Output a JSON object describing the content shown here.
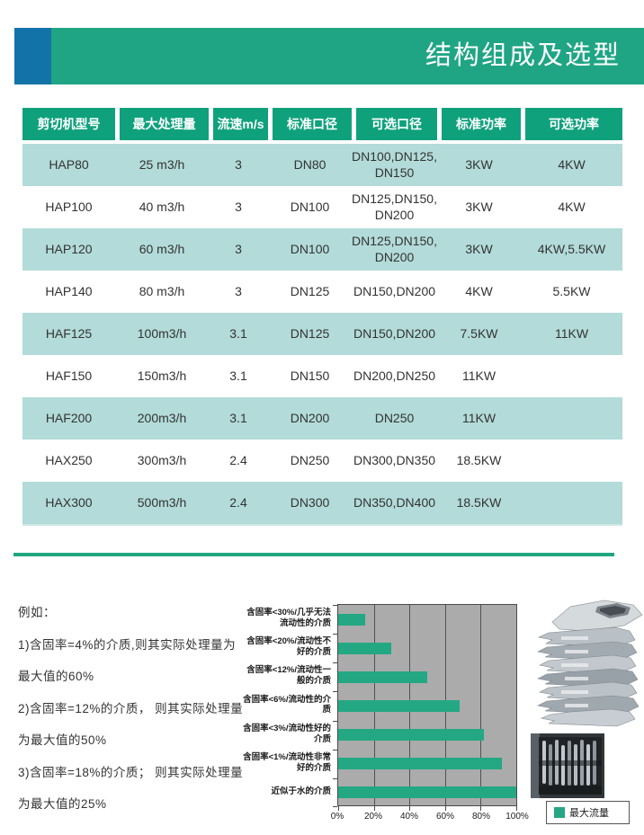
{
  "header": {
    "title": "结构组成及选型"
  },
  "colors": {
    "band": "#1FA584",
    "accent_blue": "#1273A9",
    "table_header": "#0FA17C",
    "row_stripe": "#B2DBD9",
    "bar_green": "#23A883",
    "plot_bg": "#ABABAB",
    "divider": "#1EA67E"
  },
  "table": {
    "columns": [
      "剪切机型号",
      "最大处理量",
      "流速m/s",
      "标准口径",
      "可选口径",
      "标准功率",
      "可选功率"
    ],
    "rows": [
      [
        "HAP80",
        "25 m3/h",
        "3",
        "DN80",
        "DN100,DN125,\nDN150",
        "3KW",
        "4KW"
      ],
      [
        "HAP100",
        "40 m3/h",
        "3",
        "DN100",
        "DN125,DN150,\nDN200",
        "3KW",
        "4KW"
      ],
      [
        "HAP120",
        "60 m3/h",
        "3",
        "DN100",
        "DN125,DN150,\nDN200",
        "3KW",
        "4KW,5.5KW"
      ],
      [
        "HAP140",
        "80 m3/h",
        "3",
        "DN125",
        "DN150,DN200",
        "4KW",
        "5.5KW"
      ],
      [
        "HAF125",
        "100m3/h",
        "3.1",
        "DN125",
        "DN150,DN200",
        "7.5KW",
        "11KW"
      ],
      [
        "HAF150",
        "150m3/h",
        "3.1",
        "DN150",
        "DN200,DN250",
        "11KW",
        ""
      ],
      [
        "HAF200",
        "200m3/h",
        "3.1",
        "DN200",
        "DN250",
        "11KW",
        ""
      ],
      [
        "HAX250",
        "300m3/h",
        "2.4",
        "DN250",
        "DN300,DN350",
        "18.5KW",
        ""
      ],
      [
        "HAX300",
        "500m3/h",
        "2.4",
        "DN300",
        "DN350,DN400",
        "18.5KW",
        ""
      ]
    ]
  },
  "notes": {
    "lines": [
      "例如：",
      "1)含固率=4%的介质,则其实际处理量为",
      "最大值的60%",
      "2)含固率=12%的介质， 则其实际处理量",
      "为最大值的50%",
      "3)含固率=18%的介质； 则其实际处理量",
      "为最大值的25%"
    ]
  },
  "chart_data": {
    "type": "bar",
    "orientation": "horizontal",
    "title": "",
    "xlabel": "",
    "ylabel": "",
    "categories": [
      "含固率<30%/几乎无法流动性的介质",
      "含固率<20%/流动性不好的介质",
      "含固率<12%/流动性一般的介质",
      "含固率<6%/流动性的介质",
      "含固率<3%/流动性好的介质",
      "含固率<1%/流动性非常好的介质",
      "近似于水的介质"
    ],
    "values": [
      15,
      30,
      50,
      68,
      82,
      92,
      100
    ],
    "xlim": [
      0,
      100
    ],
    "x_ticks": [
      "0%",
      "20%",
      "40%",
      "60%",
      "80%",
      "100%"
    ],
    "grid": true,
    "legend_position": "bottom-right",
    "legend": [
      {
        "label": "最大流量",
        "color": "#23A883"
      }
    ]
  },
  "figures": {
    "top_photo": "cutter-blade-stack-photo",
    "bottom_photo": "shredder-chamber-photo"
  }
}
